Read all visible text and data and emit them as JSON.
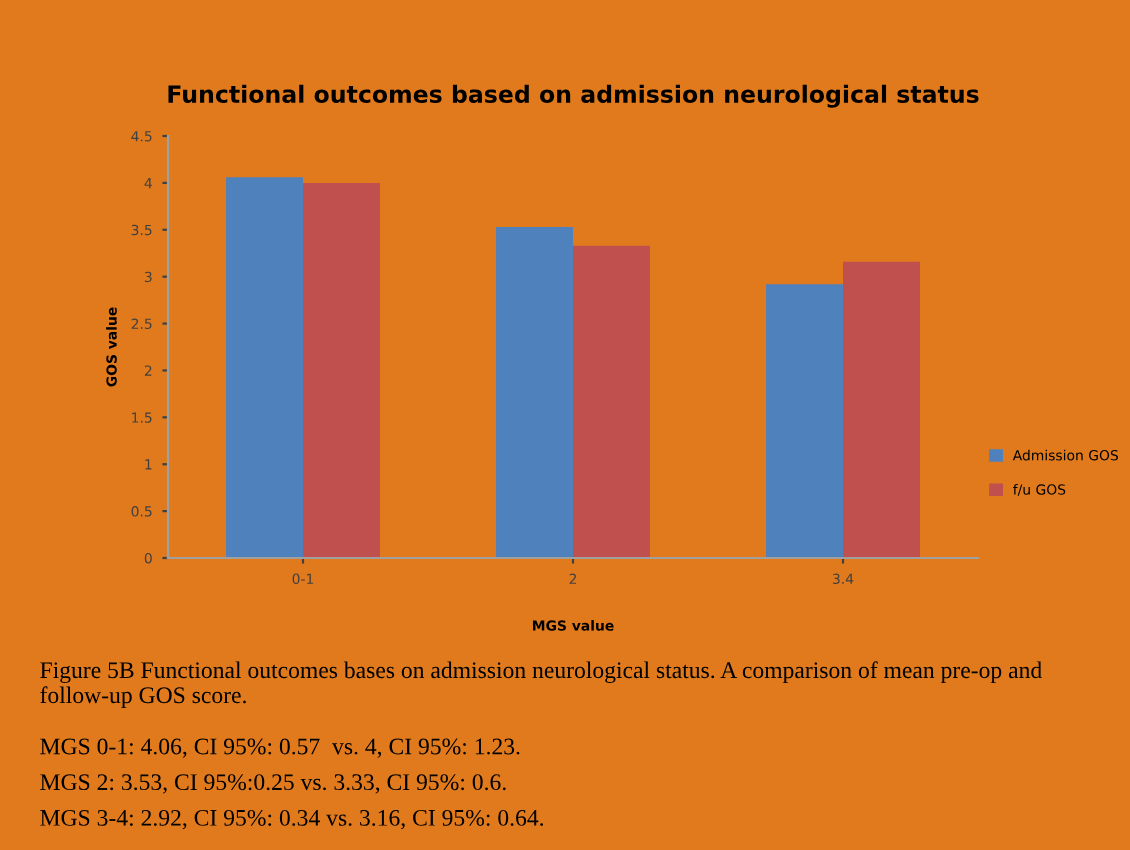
{
  "chart_data": {
    "type": "bar",
    "title": "Functional outcomes based on admission neurological status",
    "xlabel": "MGS value",
    "ylabel": "GOS value",
    "categories": [
      "0-1",
      "2",
      "3.4"
    ],
    "series": [
      {
        "name": "Admission GOS",
        "color": "#4f81bd",
        "values": [
          4.06,
          3.53,
          2.92
        ]
      },
      {
        "name": "f/u GOS",
        "color": "#c0504d",
        "values": [
          4,
          3.33,
          3.16
        ]
      }
    ],
    "ylim": [
      0,
      4.5
    ],
    "yticks": [
      0,
      0.5,
      1,
      1.5,
      2,
      2.5,
      3,
      3.5,
      4,
      4.5
    ],
    "grid": false,
    "legend": "right",
    "annotations": [
      "Figure 5B Functional outcomes bases on admission neurological status. A comparison of mean pre-op and follow-up GOS score.",
      "MGS 0-1: 4.06, CI 95%: 0.57  vs. 4, CI 95%: 1.23.",
      "MGS 2: 3.53, CI 95%:0.25 vs. 3.33, CI 95%: 0.6.",
      "MGS 3-4: 2.92, CI 95%: 0.34 vs. 3.16, CI 95%: 0.64."
    ]
  }
}
